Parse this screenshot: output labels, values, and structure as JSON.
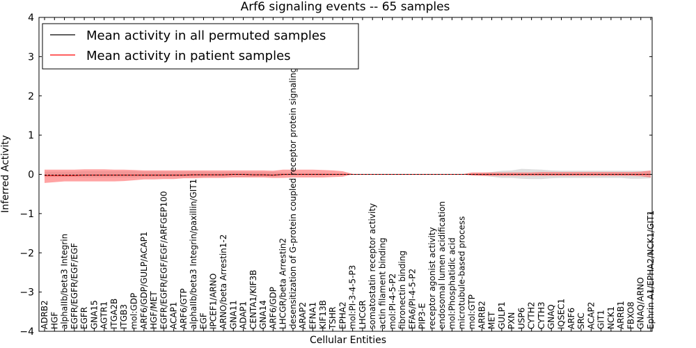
{
  "chart_data": {
    "type": "line",
    "title": "Arf6 signaling events -- 65 samples",
    "xlabel": "Cellular Entities",
    "ylabel": "Inferred Activity",
    "ylim": [
      -4,
      4
    ],
    "yticks": [
      -4,
      -3,
      -2,
      -1,
      0,
      1,
      2,
      3,
      4
    ],
    "grid": false,
    "legend_placement": "top-left",
    "categories": [
      "ADRB2",
      "HGF",
      "alphaIIb/beta3 Integrin",
      "EGFR/EGFR/EGF/EGF",
      "EGFR",
      "GNA15",
      "AGTR1",
      "ITGA2B",
      "ITGB3",
      "mol:GDP",
      "ARF6/GDP/GULP/ACAP1",
      "HGF/MET",
      "EGFR/EGFR/EGF/EGF/ARFGEP100",
      "ACAP1",
      "ARF6/GTP",
      "alphaIIb/beta3 Integrin/paxillin/GIT1",
      "EGF",
      "IPCEF1/ARNO",
      "ARNO/beta Arrestin1-2",
      "GNA11",
      "ADAP1",
      "CENTA1/KIF3B",
      "GNA14",
      "ARF6/GDP",
      "LHCGR/beta Arrestin2",
      "desensitization of G-protein coupled receptor protein signaling pathway",
      "ARAP2",
      "EFNA1",
      "KIF13B",
      "TSHR",
      "EPHA2",
      "mol:PI-3-4-5-P3",
      "LHCGR",
      "somatostatin receptor activity",
      "actin filament binding",
      "mol:PI-4-5-P2",
      "fibronectin binding",
      "EFA6/PI-4-5-P2",
      "PIP3-E",
      "receptor agonist activity",
      "endosomal lumen acidification",
      "mol:Phosphatidic acid",
      "microtubule-based process",
      "mol:GTP",
      "ARRB2",
      "MET",
      "GULP1",
      "PXN",
      "USP6",
      "CYTH2",
      "CYTH3",
      "GNAQ",
      "IQSEC1",
      "ARF6",
      "SRC",
      "ACAP2",
      "GIT1",
      "NCK1",
      "ARRB1",
      "FBXO8",
      "GNAQ/ARNO",
      "Ephrin A1/EPHA2/NCK1/GIT1"
    ],
    "series": [
      {
        "name": "Mean activity in all permuted samples",
        "color": "#000000",
        "values": [
          -0.02,
          -0.02,
          -0.02,
          -0.02,
          -0.02,
          -0.02,
          -0.02,
          -0.02,
          -0.02,
          -0.02,
          -0.02,
          -0.02,
          -0.02,
          -0.02,
          -0.02,
          -0.01,
          -0.01,
          -0.01,
          -0.01,
          0,
          0,
          -0.01,
          -0.01,
          -0.02,
          0,
          0,
          0,
          0,
          0,
          0,
          0,
          0,
          0,
          0,
          0,
          0,
          0,
          0,
          0,
          0,
          0,
          0,
          0,
          0,
          0,
          0,
          0,
          0,
          0,
          0,
          0,
          0,
          0,
          0,
          0,
          0,
          0,
          0,
          0,
          0,
          0,
          0
        ],
        "band_low": [
          -0.07,
          -0.07,
          -0.07,
          -0.07,
          -0.08,
          -0.08,
          -0.08,
          -0.08,
          -0.08,
          -0.08,
          -0.07,
          -0.07,
          -0.07,
          -0.07,
          -0.07,
          -0.07,
          -0.07,
          -0.06,
          -0.06,
          -0.06,
          -0.06,
          -0.06,
          -0.06,
          -0.06,
          -0.04,
          -0.03,
          -0.03,
          -0.03,
          -0.03,
          -0.02,
          -0.02,
          0,
          0,
          0,
          0,
          0,
          0,
          0,
          0,
          0,
          0,
          0,
          0,
          -0.02,
          -0.03,
          -0.06,
          -0.09,
          -0.09,
          -0.11,
          -0.12,
          -0.12,
          -0.1,
          -0.09,
          -0.09,
          -0.09,
          -0.09,
          -0.09,
          -0.09,
          -0.09,
          -0.11,
          -0.11,
          -0.1
        ],
        "band_high": [
          0.07,
          0.07,
          0.07,
          0.07,
          0.08,
          0.08,
          0.08,
          0.08,
          0.08,
          0.08,
          0.07,
          0.07,
          0.07,
          0.07,
          0.07,
          0.07,
          0.07,
          0.06,
          0.06,
          0.06,
          0.06,
          0.06,
          0.06,
          0.06,
          0.04,
          0.03,
          0.03,
          0.03,
          0.03,
          0.02,
          0.02,
          0,
          0,
          0,
          0,
          0,
          0,
          0,
          0,
          0,
          0,
          0,
          0,
          0.02,
          0.03,
          0.06,
          0.09,
          0.1,
          0.14,
          0.13,
          0.12,
          0.1,
          0.09,
          0.09,
          0.09,
          0.09,
          0.09,
          0.09,
          0.09,
          0.09,
          0.09,
          0.09
        ]
      },
      {
        "name": "Mean activity in patient samples",
        "color": "#ff0000",
        "values": [
          -0.03,
          -0.03,
          -0.03,
          -0.03,
          -0.02,
          -0.02,
          -0.02,
          -0.02,
          -0.02,
          -0.02,
          -0.02,
          -0.02,
          -0.02,
          -0.02,
          -0.02,
          -0.01,
          -0.01,
          -0.01,
          -0.01,
          0,
          0,
          -0.01,
          -0.01,
          -0.02,
          0,
          0,
          0,
          0,
          0,
          0,
          0,
          0,
          0,
          0,
          0,
          0,
          0,
          0,
          0,
          0,
          0,
          0,
          0,
          0,
          0,
          0,
          0,
          0,
          0,
          0,
          0,
          0,
          0,
          0,
          0,
          0,
          0,
          0,
          0,
          0,
          0,
          0
        ],
        "band_low": [
          -0.22,
          -0.2,
          -0.18,
          -0.18,
          -0.18,
          -0.18,
          -0.18,
          -0.18,
          -0.17,
          -0.15,
          -0.13,
          -0.13,
          -0.12,
          -0.12,
          -0.1,
          -0.1,
          -0.09,
          -0.09,
          -0.09,
          -0.08,
          -0.08,
          -0.08,
          -0.08,
          -0.09,
          -0.09,
          -0.08,
          -0.08,
          -0.08,
          -0.08,
          -0.07,
          -0.06,
          0,
          0,
          0,
          0,
          0,
          0,
          0,
          0,
          0,
          0,
          0,
          0,
          -0.03,
          -0.04,
          -0.04,
          -0.04,
          -0.04,
          -0.04,
          -0.04,
          -0.04,
          -0.04,
          -0.04,
          -0.04,
          -0.04,
          -0.04,
          -0.04,
          -0.04,
          -0.04,
          -0.04,
          -0.05,
          -0.08
        ],
        "band_high": [
          0.12,
          0.12,
          0.12,
          0.12,
          0.13,
          0.13,
          0.13,
          0.12,
          0.12,
          0.11,
          0.1,
          0.1,
          0.1,
          0.1,
          0.1,
          0.1,
          0.1,
          0.1,
          0.1,
          0.1,
          0.1,
          0.1,
          0.1,
          0.09,
          0.12,
          0.12,
          0.12,
          0.12,
          0.11,
          0.1,
          0.08,
          0.01,
          0,
          0,
          0,
          0,
          0,
          0,
          0,
          0,
          0,
          0,
          0,
          0.05,
          0.05,
          0.05,
          0.05,
          0.05,
          0.05,
          0.05,
          0.06,
          0.06,
          0.06,
          0.06,
          0.06,
          0.06,
          0.06,
          0.06,
          0.06,
          0.06,
          0.07,
          0.1
        ]
      }
    ]
  }
}
